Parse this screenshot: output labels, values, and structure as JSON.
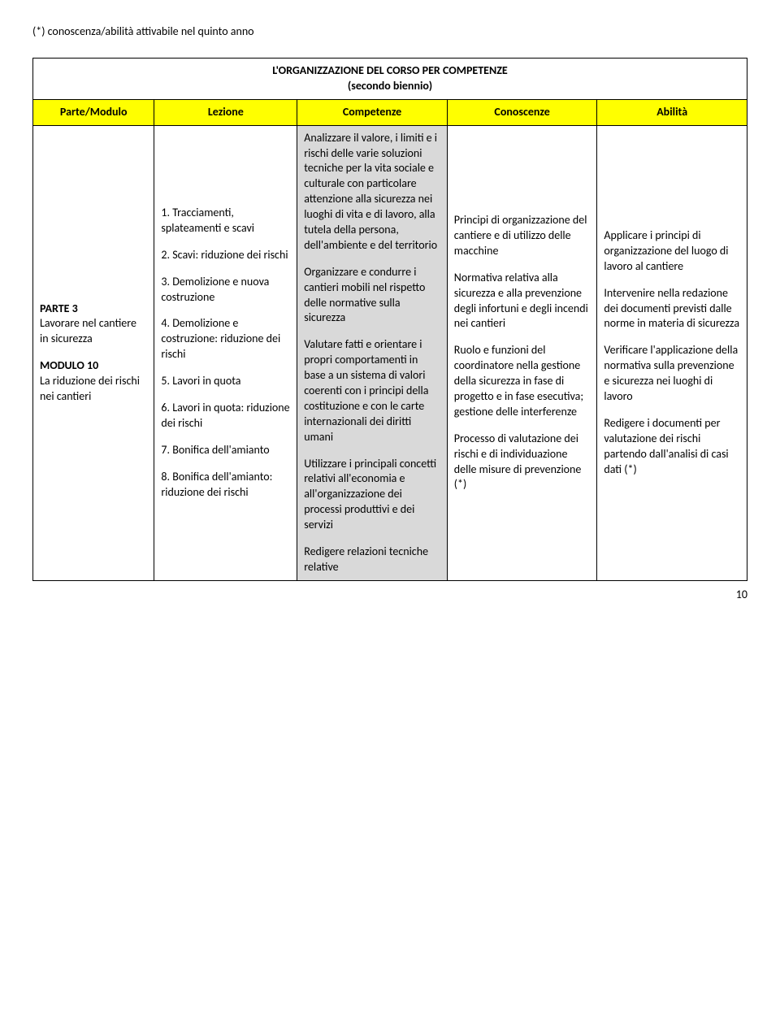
{
  "footnote": "(*) conoscenza/abilità attivabile nel quinto anno",
  "table_title": "L'ORGANIZZAZIONE DEL CORSO PER COMPETENZE",
  "table_subtitle": "(secondo biennio)",
  "headers": {
    "c1": "Parte/Modulo",
    "c2": "Lezione",
    "c3": "Competenze",
    "c4": "Conoscenze",
    "c5": "Abilità"
  },
  "col1": {
    "p1_bold": "PARTE 3",
    "p1_rest": "Lavorare nel cantiere in sicurezza",
    "p2_bold": "MODULO 10",
    "p2_rest": "La riduzione dei rischi nei cantieri"
  },
  "col2": {
    "l1": "1. Tracciamenti, splateamenti e scavi",
    "l2": "2. Scavi: riduzione dei rischi",
    "l3": "3. Demolizione e nuova costruzione",
    "l4": "4. Demolizione e costruzione: riduzione dei rischi",
    "l5": "5. Lavori in quota",
    "l6": "6. Lavori in quota: riduzione dei rischi",
    "l7": "7. Bonifica dell'amianto",
    "l8": "8. Bonifica dell'amianto: riduzione dei rischi"
  },
  "col3": {
    "p1": "Analizzare il valore, i limiti e i rischi delle varie soluzioni tecniche per la vita sociale e culturale con particolare attenzione alla sicurezza nei luoghi di vita e di lavoro, alla tutela della persona, dell'ambiente e del territorio",
    "p2": "Organizzare e condurre i cantieri mobili nel rispetto delle normative sulla sicurezza",
    "p3": "Valutare fatti e orientare i propri comportamenti in base a un sistema di valori coerenti con i principi della costituzione e con le carte internazionali dei diritti umani",
    "p4": "Utilizzare i principali concetti relativi all'economia e all'organizzazione dei processi produttivi e dei servizi",
    "p5": "Redigere relazioni tecniche relative"
  },
  "col4": {
    "p1": "Principi di organizzazione del cantiere e di utilizzo delle macchine",
    "p2": "Normativa relativa alla sicurezza e alla prevenzione degli infortuni e degli incendi nei cantieri",
    "p3": "Ruolo e funzioni del coordinatore nella gestione della sicurezza in fase di progetto e in fase esecutiva; gestione delle interferenze",
    "p4": "Processo di valutazione dei rischi e di individuazione delle misure di prevenzione (*)"
  },
  "col5": {
    "p1": "Applicare i principi di organizzazione del luogo di lavoro al cantiere",
    "p2": "Intervenire nella redazione dei documenti previsti dalle norme in materia di sicurezza",
    "p3": "Verificare l'applicazione della normativa sulla prevenzione e sicurezza nei luoghi di lavoro",
    "p4": "Redigere i documenti per valutazione dei rischi partendo dall'analisi di casi dati (*)"
  },
  "page_num": "10"
}
